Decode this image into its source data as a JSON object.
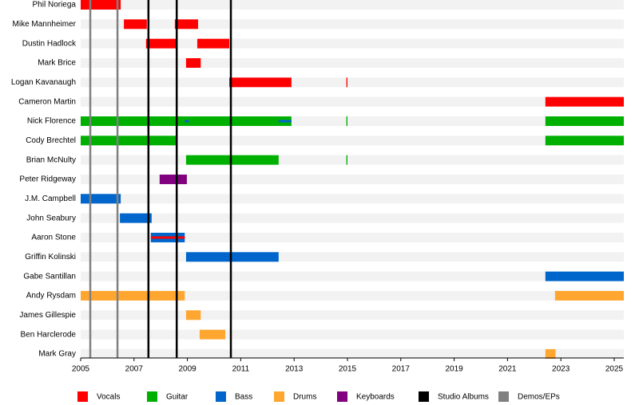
{
  "chart_data": {
    "type": "timeline",
    "categories": [
      "Phil Noriega",
      "Mike Mannheimer",
      "Dustin Hadlock",
      "Mark Brice",
      "Logan Kavanaugh",
      "Cameron Martin",
      "Nick Florence",
      "Cody Brechtel",
      "Brian McNulty",
      "Peter Ridgeway",
      "J.M. Campbell",
      "John Seabury",
      "Aaron Stone",
      "Griffin Kolinski",
      "Gabe Santillan",
      "Andy Rysdam",
      "James Gillespie",
      "Ben Harclerode",
      "Mark Gray"
    ],
    "xlim": [
      2005,
      2025.36
    ],
    "xticks": [
      2005,
      2007,
      2009,
      2011,
      2013,
      2015,
      2017,
      2019,
      2021,
      2023,
      2025
    ],
    "series": [
      {
        "name": "Vocals",
        "color": "#ff0000",
        "bars": [
          {
            "category": "Phil Noriega",
            "start": 2005,
            "end": 2006.5
          },
          {
            "category": "Mike Mannheimer",
            "start": 2006.62,
            "end": 2007.48
          },
          {
            "category": "Mike Mannheimer",
            "start": 2008.53,
            "end": 2009.4
          },
          {
            "category": "Dustin Hadlock",
            "start": 2007.45,
            "end": 2008.6
          },
          {
            "category": "Dustin Hadlock",
            "start": 2009.37,
            "end": 2010.57
          },
          {
            "category": "Mark Brice",
            "start": 2008.95,
            "end": 2009.5
          },
          {
            "category": "Logan Kavanaugh",
            "start": 2010.57,
            "end": 2012.9
          },
          {
            "category": "Logan Kavanaugh",
            "start": 2014.96,
            "end": 2015.0
          },
          {
            "category": "Cameron Martin",
            "start": 2022.42,
            "end": 2025.36
          },
          {
            "category": "Aaron Stone",
            "start": 2007.63,
            "end": 2008.9,
            "overlay": true
          }
        ]
      },
      {
        "name": "Guitar",
        "color": "#00b000",
        "bars": [
          {
            "category": "Nick Florence",
            "start": 2005,
            "end": 2012.9
          },
          {
            "category": "Nick Florence",
            "start": 2014.96,
            "end": 2015.0
          },
          {
            "category": "Nick Florence",
            "start": 2022.42,
            "end": 2025.36
          },
          {
            "category": "Cody Brechtel",
            "start": 2005,
            "end": 2008.62
          },
          {
            "category": "Cody Brechtel",
            "start": 2022.42,
            "end": 2025.36
          },
          {
            "category": "Brian McNulty",
            "start": 2008.95,
            "end": 2012.42
          },
          {
            "category": "Brian McNulty",
            "start": 2014.96,
            "end": 2015.0
          }
        ]
      },
      {
        "name": "Bass",
        "color": "#0066cc",
        "bars": [
          {
            "category": "J.M. Campbell",
            "start": 2005,
            "end": 2006.5
          },
          {
            "category": "John Seabury",
            "start": 2006.47,
            "end": 2007.66
          },
          {
            "category": "Aaron Stone",
            "start": 2007.63,
            "end": 2008.9
          },
          {
            "category": "Griffin Kolinski",
            "start": 2008.95,
            "end": 2012.42
          },
          {
            "category": "Gabe Santillan",
            "start": 2022.42,
            "end": 2025.36
          },
          {
            "category": "Nick Florence",
            "start": 2008.9,
            "end": 2009.05,
            "overlay": true
          },
          {
            "category": "Nick Florence",
            "start": 2012.42,
            "end": 2012.9,
            "overlay": true
          }
        ]
      },
      {
        "name": "Drums",
        "color": "#ffa630",
        "bars": [
          {
            "category": "Andy Rysdam",
            "start": 2005,
            "end": 2008.9
          },
          {
            "category": "Andy Rysdam",
            "start": 2022.78,
            "end": 2025.36
          },
          {
            "category": "James Gillespie",
            "start": 2008.95,
            "end": 2009.5
          },
          {
            "category": "Ben Harclerode",
            "start": 2009.46,
            "end": 2010.42
          },
          {
            "category": "Mark Gray",
            "start": 2022.42,
            "end": 2022.8
          }
        ]
      },
      {
        "name": "Keyboards",
        "color": "#800080",
        "bars": [
          {
            "category": "Peter Ridgeway",
            "start": 2007.96,
            "end": 2008.98
          }
        ]
      }
    ],
    "markers": [
      {
        "name": "Studio Albums",
        "color": "#000000",
        "x": [
          2007.54,
          2008.6,
          2010.63
        ]
      },
      {
        "name": "Demos/EPs",
        "color": "#808080",
        "x": [
          2005.36,
          2006.38
        ]
      }
    ]
  }
}
